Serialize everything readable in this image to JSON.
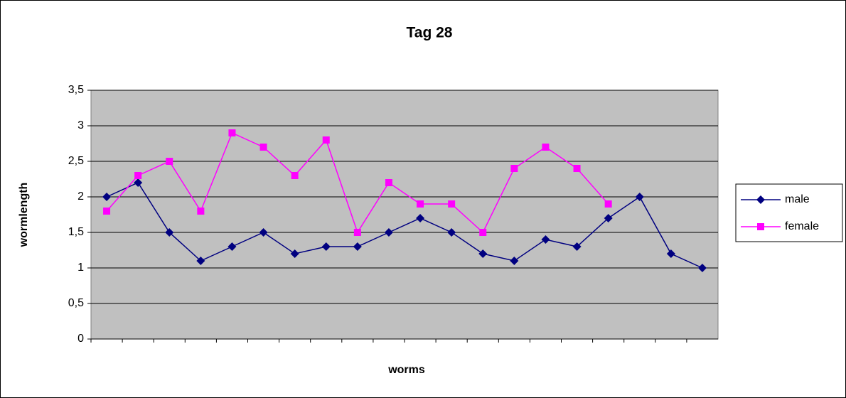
{
  "chart_data": {
    "type": "line",
    "title": "Tag 28",
    "x_label": "worms",
    "y_label": "wormlength",
    "categories": [
      null,
      null,
      null,
      null,
      null,
      null,
      null,
      null,
      null,
      null,
      null,
      null,
      null,
      null,
      null,
      null,
      null,
      null,
      null,
      null
    ],
    "series": [
      {
        "name": "male",
        "color": "#000080",
        "marker": "diamond",
        "values": [
          2.0,
          2.2,
          1.5,
          1.1,
          1.3,
          1.5,
          1.2,
          1.3,
          1.3,
          1.5,
          1.7,
          1.5,
          1.2,
          1.1,
          1.4,
          1.3,
          1.7,
          2.0,
          1.2,
          1.0
        ]
      },
      {
        "name": "female",
        "color": "#ff00ff",
        "marker": "square",
        "values": [
          1.8,
          2.3,
          2.5,
          1.8,
          2.9,
          2.7,
          2.3,
          2.8,
          1.5,
          2.2,
          1.9,
          1.9,
          1.5,
          2.4,
          2.7,
          2.4,
          1.9,
          null,
          null,
          null
        ]
      }
    ],
    "ylim": [
      0,
      3.5
    ],
    "yticks": [
      0,
      {
        "value": 0.5,
        "label": "0,5"
      },
      1,
      {
        "value": 1.5,
        "label": "1,5"
      },
      2,
      {
        "value": 2.5,
        "label": "2,5"
      },
      3,
      {
        "value": 3.5,
        "label": "3,5"
      }
    ],
    "grid": true,
    "plot_background": "#c0c0c0",
    "legend": "right"
  }
}
